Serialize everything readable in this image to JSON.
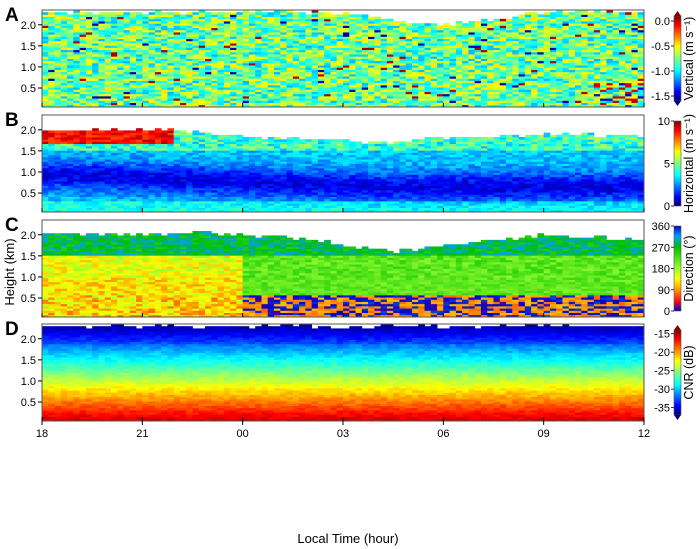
{
  "chart_data": {
    "type": "heatmap",
    "xlabel": "Local Time (hour)",
    "ylabel": "Height (km)",
    "x_tick_labels": [
      "18",
      "21",
      "00",
      "03",
      "06",
      "09",
      "12"
    ],
    "x_range_hours": [
      18,
      36
    ],
    "y_range_km": [
      0.05,
      2.35
    ],
    "y_tick_labels": [
      "0.5",
      "1.0",
      "1.5",
      "2.0"
    ],
    "y_tick_labels_top": [
      "0.5",
      "1.0",
      "1.5",
      "2.0"
    ],
    "y_tick_values": [
      0.5,
      1.0,
      1.5,
      2.0
    ],
    "panels": [
      {
        "letter": "A",
        "colorbar_label": "Vertical (m s⁻¹)",
        "range": [
          -1.6,
          0.1
        ],
        "colorbar_ticks": [
          "0.0",
          "-0.5",
          "-1.0",
          "-1.5"
        ],
        "colorbar_tick_values": [
          0.0,
          -0.5,
          -1.0,
          -1.5
        ],
        "y_tick_labels": [
          "0.5",
          "1.0",
          "1.5",
          "2.0"
        ],
        "top_height_km": [
          [
            18,
            2.3
          ],
          [
            27,
            2.3
          ],
          [
            28.5,
            2.1
          ],
          [
            30,
            2.0
          ],
          [
            31.5,
            2.15
          ],
          [
            33,
            2.3
          ],
          [
            36,
            2.3
          ]
        ]
      },
      {
        "letter": "B",
        "colorbar_label": "Horizontal (m s⁻¹)",
        "range": [
          0,
          10
        ],
        "colorbar_ticks": [
          "10",
          "5",
          "0"
        ],
        "colorbar_tick_values": [
          10,
          5,
          0
        ],
        "y_tick_labels": [
          "0.5",
          "1.0",
          "1.5",
          "2.0"
        ],
        "top_height_km": [
          [
            18,
            2.0
          ],
          [
            22,
            2.0
          ],
          [
            24,
            1.85
          ],
          [
            27,
            1.75
          ],
          [
            28.5,
            1.7
          ],
          [
            30,
            1.8
          ],
          [
            33,
            1.9
          ],
          [
            36,
            1.85
          ]
        ]
      },
      {
        "letter": "C",
        "colorbar_label": "Direction (°)",
        "range": [
          0,
          360
        ],
        "colorbar_ticks": [
          "360",
          "270",
          "180",
          "90",
          "0"
        ],
        "colorbar_tick_values": [
          360,
          270,
          180,
          90,
          0
        ],
        "y_tick_labels": [
          "0.5",
          "1.0",
          "1.5",
          "2.0"
        ],
        "top_height_km": [
          [
            18,
            2.0
          ],
          [
            23,
            2.05
          ],
          [
            26,
            1.9
          ],
          [
            28.5,
            1.6
          ],
          [
            30,
            1.75
          ],
          [
            33,
            2.0
          ],
          [
            36,
            1.9
          ]
        ]
      },
      {
        "letter": "D",
        "colorbar_label": "CNR (dB)",
        "range": [
          -37,
          -14
        ],
        "colorbar_ticks": [
          "-15",
          "-20",
          "-25",
          "-30",
          "-35"
        ],
        "colorbar_tick_values": [
          -15,
          -20,
          -25,
          -30,
          -35
        ],
        "y_tick_labels": [
          "0.5",
          "1.0",
          "1.5",
          "2.0"
        ],
        "top_height_km": [
          [
            18,
            2.3
          ],
          [
            36,
            2.3
          ]
        ]
      }
    ]
  }
}
